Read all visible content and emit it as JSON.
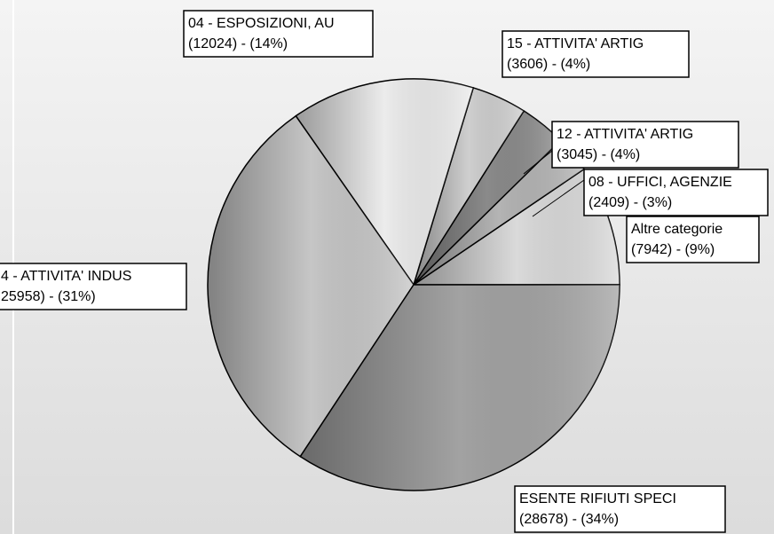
{
  "chart_data": {
    "type": "pie",
    "categories": [
      "Altre categorie",
      "08 - UFFICI, AGENZIE",
      "12 - ATTIVITA' ARTIG",
      "15 - ATTIVITA' ARTIG",
      "04 - ESPOSIZIONI, AU",
      "4 - ATTIVITA' INDUS",
      "ESENTE RIFIUTI SPECI"
    ],
    "values": [
      7942,
      2409,
      3045,
      3606,
      12024,
      25958,
      28678
    ],
    "value_labels": [
      "(7942) - (9%)",
      "(2409) - (3%)",
      "(3045) - (4%)",
      "(3606) - (4%)",
      "(12024) - (14%)",
      "25958) - (31%)",
      "(28678) - (34%)"
    ],
    "colors": [
      "#dadada",
      "#b4b4b4",
      "#8a8a8a",
      "#cfcfcf",
      "#ececec",
      "#c6c6c6",
      "#a2a2a2"
    ]
  }
}
